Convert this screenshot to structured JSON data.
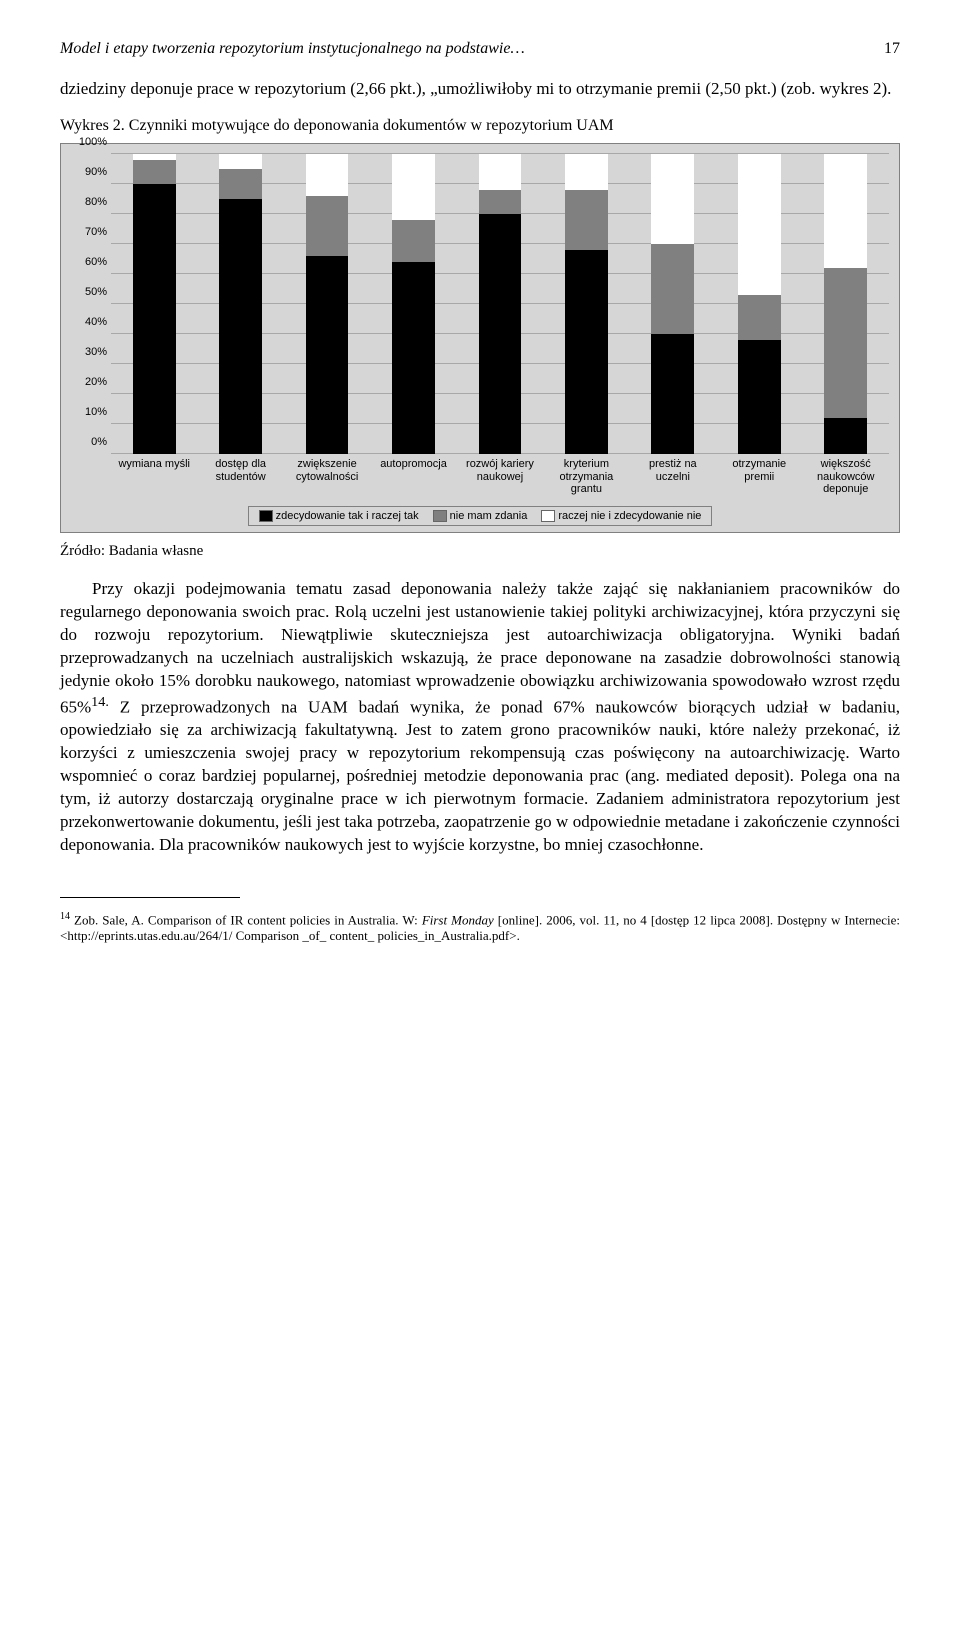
{
  "header": {
    "running_title": "Model i etapy tworzenia repozytorium instytucjonalnego na podstawie…",
    "page_number": "17"
  },
  "para1": "dziedziny deponuje prace w repozytorium (2,66 pkt.), „umożliwiłoby mi to otrzymanie premii (2,50 pkt.) (zob. wykres 2).",
  "chart": {
    "title": "Wykres 2. Czynniki motywujące do deponowania dokumentów w repozytorium UAM",
    "source": "Źródło: Badania własne",
    "y_ticks": [
      "0%",
      "10%",
      "20%",
      "30%",
      "40%",
      "50%",
      "60%",
      "70%",
      "80%",
      "90%",
      "100%"
    ],
    "categories": [
      "wymiana myśli",
      "dostęp dla studentów",
      "zwiększenie cytowalności",
      "autopromocja",
      "rozwój kariery naukowej",
      "kryterium otrzymania grantu",
      "prestiż na uczelni",
      "otrzymanie premii",
      "większość naukowców deponuje"
    ],
    "series": {
      "tak": [
        90,
        85,
        66,
        64,
        80,
        68,
        40,
        38,
        12
      ],
      "nie_zdania": [
        8,
        10,
        20,
        14,
        8,
        20,
        30,
        15,
        50
      ],
      "nie": [
        2,
        5,
        14,
        22,
        12,
        12,
        30,
        47,
        38
      ]
    },
    "colors": {
      "tak": "#000000",
      "nie_zdania": "#808080",
      "nie": "#ffffff",
      "plot_bg": "#d6d6d6",
      "grid": "#a8a8a8"
    },
    "legend": {
      "tak": "zdecydowanie tak i raczej tak",
      "nie_zdania": "nie mam zdania",
      "nie": "raczej nie i zdecydowanie nie"
    }
  },
  "para2_a": "Przy okazji podejmowania tematu zasad deponowania należy także zająć się nakłanianiem pracowników do regularnego deponowania swoich prac. Rolą uczelni jest ustanowienie takiej polityki archiwizacyjnej, która przyczyni się do rozwoju repozytorium. Niewątpliwie skuteczniejsza jest autoarchiwizacja obligatoryjna. Wyniki badań przeprowadzanych na uczelniach australijskich wskazują, że prace deponowane na zasadzie dobrowolności stanowią jedynie około 15% dorobku naukowego, natomiast wprowadzenie obowiązku archiwizowania spowodowało wzrost rzędu 65%",
  "para2_sup": "14.",
  "para2_b": " Z przeprowadzonych na UAM badań wynika, że ponad 67% naukowców biorących udział w badaniu, opowiedziało się za archiwizacją fakultatywną. Jest to zatem grono pracowników nauki, które należy przekonać, iż korzyści z umieszczenia swojej pracy w repozytorium rekompensują czas poświęcony na autoarchiwizację. Warto wspomnieć o coraz bardziej popularnej, pośredniej metodzie deponowania prac (ang. mediated deposit). Polega ona na tym, iż autorzy dostarczają oryginalne prace w ich pierwotnym formacie. Zadaniem administratora repozytorium jest przekonwertowanie dokumentu, jeśli jest taka potrzeba, zaopatrzenie go w odpowiednie metadane i zakończenie czynności deponowania. Dla pracowników naukowych jest to wyjście korzystne, bo mniej czasochłonne.",
  "footnote": {
    "num": "14",
    "text_a": " Zob. Sale, A. Comparison of IR content policies in Australia. W: ",
    "text_italic": "First Monday",
    "text_b": " [online]. 2006, vol. 11, no 4 [dostęp 12 lipca 2008]. Dostępny w Internecie: <http://eprints.utas.edu.au/264/1/ Comparison _of_ content_ policies_in_Australia.pdf>."
  }
}
